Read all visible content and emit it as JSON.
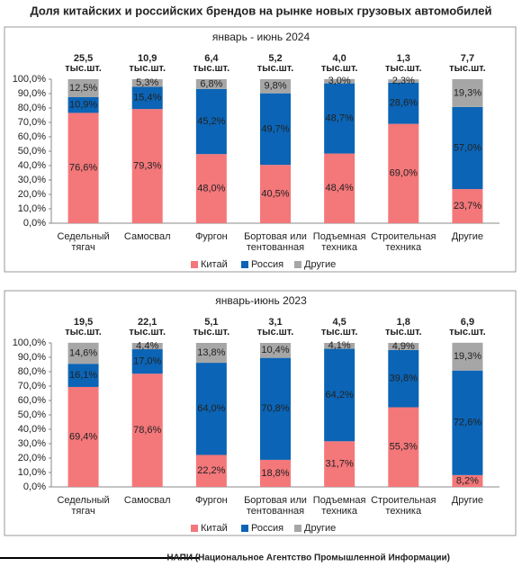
{
  "title": "Доля китайских и российских брендов на рынке новых грузовых автомобилей",
  "source": "НАПИ (Национальное Агентство Промышленной Информации)",
  "chart_data": [
    {
      "type": "bar",
      "stacked": true,
      "subtitle": "январь - июнь 2024",
      "categories": [
        "Седельный тягач",
        "Самосвал",
        "Фургон",
        "Бортовая или тентованная",
        "Подъемная техника",
        "Строительная техника",
        "Другие"
      ],
      "totals": {
        "values": [
          25.5,
          10.9,
          6.4,
          5.2,
          4.0,
          1.3,
          7.7
        ],
        "value_labels": [
          "25,5",
          "10,9",
          "6,4",
          "5,2",
          "4,0",
          "1,3",
          "7,7"
        ],
        "unit": "тыс.шт."
      },
      "series": [
        {
          "name": "Китай",
          "color": "#f4777a",
          "values": [
            76.6,
            79.3,
            48.0,
            40.5,
            48.4,
            69.0,
            23.7
          ],
          "value_labels": [
            "76,6%",
            "79,3%",
            "48,0%",
            "40,5%",
            "48,4%",
            "69,0%",
            "23,7%"
          ]
        },
        {
          "name": "Россия",
          "color": "#0b64b5",
          "values": [
            10.9,
            15.4,
            45.2,
            49.7,
            48.7,
            28.6,
            57.0
          ],
          "value_labels": [
            "10,9%",
            "15,4%",
            "45,2%",
            "49,7%",
            "48,7%",
            "28,6%",
            "57,0%"
          ]
        },
        {
          "name": "Другие",
          "color": "#a6a6a6",
          "values": [
            12.5,
            5.3,
            6.8,
            9.8,
            3.0,
            2.3,
            19.3
          ],
          "value_labels": [
            "12,5%",
            "5,3%",
            "6,8%",
            "9,8%",
            "3,0%",
            "2,3%",
            "19,3%"
          ]
        }
      ],
      "ylim": [
        0,
        100
      ],
      "yticks": [
        {
          "value": 0,
          "label": "0,0%"
        },
        {
          "value": 10,
          "label": "10,0%"
        },
        {
          "value": 20,
          "label": "20,0%"
        },
        {
          "value": 30,
          "label": "30,0%"
        },
        {
          "value": 40,
          "label": "40,0%"
        },
        {
          "value": 50,
          "label": "50,0%"
        },
        {
          "value": 60,
          "label": "60,0%"
        },
        {
          "value": 70,
          "label": "70,0%"
        },
        {
          "value": 80,
          "label": "80,0%"
        },
        {
          "value": 90,
          "label": "90,0%"
        },
        {
          "value": 100,
          "label": "100,0%"
        }
      ],
      "grid": false,
      "legend": "bottom"
    },
    {
      "type": "bar",
      "stacked": true,
      "subtitle": "январь-июнь 2023",
      "categories": [
        "Седельный тягач",
        "Самосвал",
        "Фургон",
        "Бортовая или тентованная",
        "Подъемная техника",
        "Строительная техника",
        "Другие"
      ],
      "totals": {
        "values": [
          19.5,
          22.1,
          5.1,
          3.1,
          4.5,
          1.8,
          6.9
        ],
        "value_labels": [
          "19,5",
          "22,1",
          "5,1",
          "3,1",
          "4,5",
          "1,8",
          "6,9"
        ],
        "unit": "тыс.шт."
      },
      "series": [
        {
          "name": "Китай",
          "color": "#f4777a",
          "values": [
            69.4,
            78.6,
            22.2,
            18.8,
            31.7,
            55.3,
            8.2
          ],
          "value_labels": [
            "69,4%",
            "78,6%",
            "22,2%",
            "18,8%",
            "31,7%",
            "55,3%",
            "8,2%"
          ]
        },
        {
          "name": "Россия",
          "color": "#0b64b5",
          "values": [
            16.1,
            17.0,
            64.0,
            70.8,
            64.2,
            39.8,
            72.6
          ],
          "value_labels": [
            "16,1%",
            "17,0%",
            "64,0%",
            "70,8%",
            "64,2%",
            "39,8%",
            "72,6%"
          ]
        },
        {
          "name": "Другие",
          "color": "#a6a6a6",
          "values": [
            14.6,
            4.4,
            13.8,
            10.4,
            4.1,
            4.9,
            19.3
          ],
          "value_labels": [
            "14,6%",
            "4,4%",
            "13,8%",
            "10,4%",
            "4,1%",
            "4,9%",
            "19,3%"
          ]
        }
      ],
      "ylim": [
        0,
        100
      ],
      "yticks": [
        {
          "value": 0,
          "label": "0,0%"
        },
        {
          "value": 10,
          "label": "10,0%"
        },
        {
          "value": 20,
          "label": "20,0%"
        },
        {
          "value": 30,
          "label": "30,0%"
        },
        {
          "value": 40,
          "label": "40,0%"
        },
        {
          "value": 50,
          "label": "50,0%"
        },
        {
          "value": 60,
          "label": "60,0%"
        },
        {
          "value": 70,
          "label": "70,0%"
        },
        {
          "value": 80,
          "label": "80,0%"
        },
        {
          "value": 90,
          "label": "90,0%"
        },
        {
          "value": 100,
          "label": "100,0%"
        }
      ],
      "grid": false,
      "legend": "bottom"
    }
  ]
}
